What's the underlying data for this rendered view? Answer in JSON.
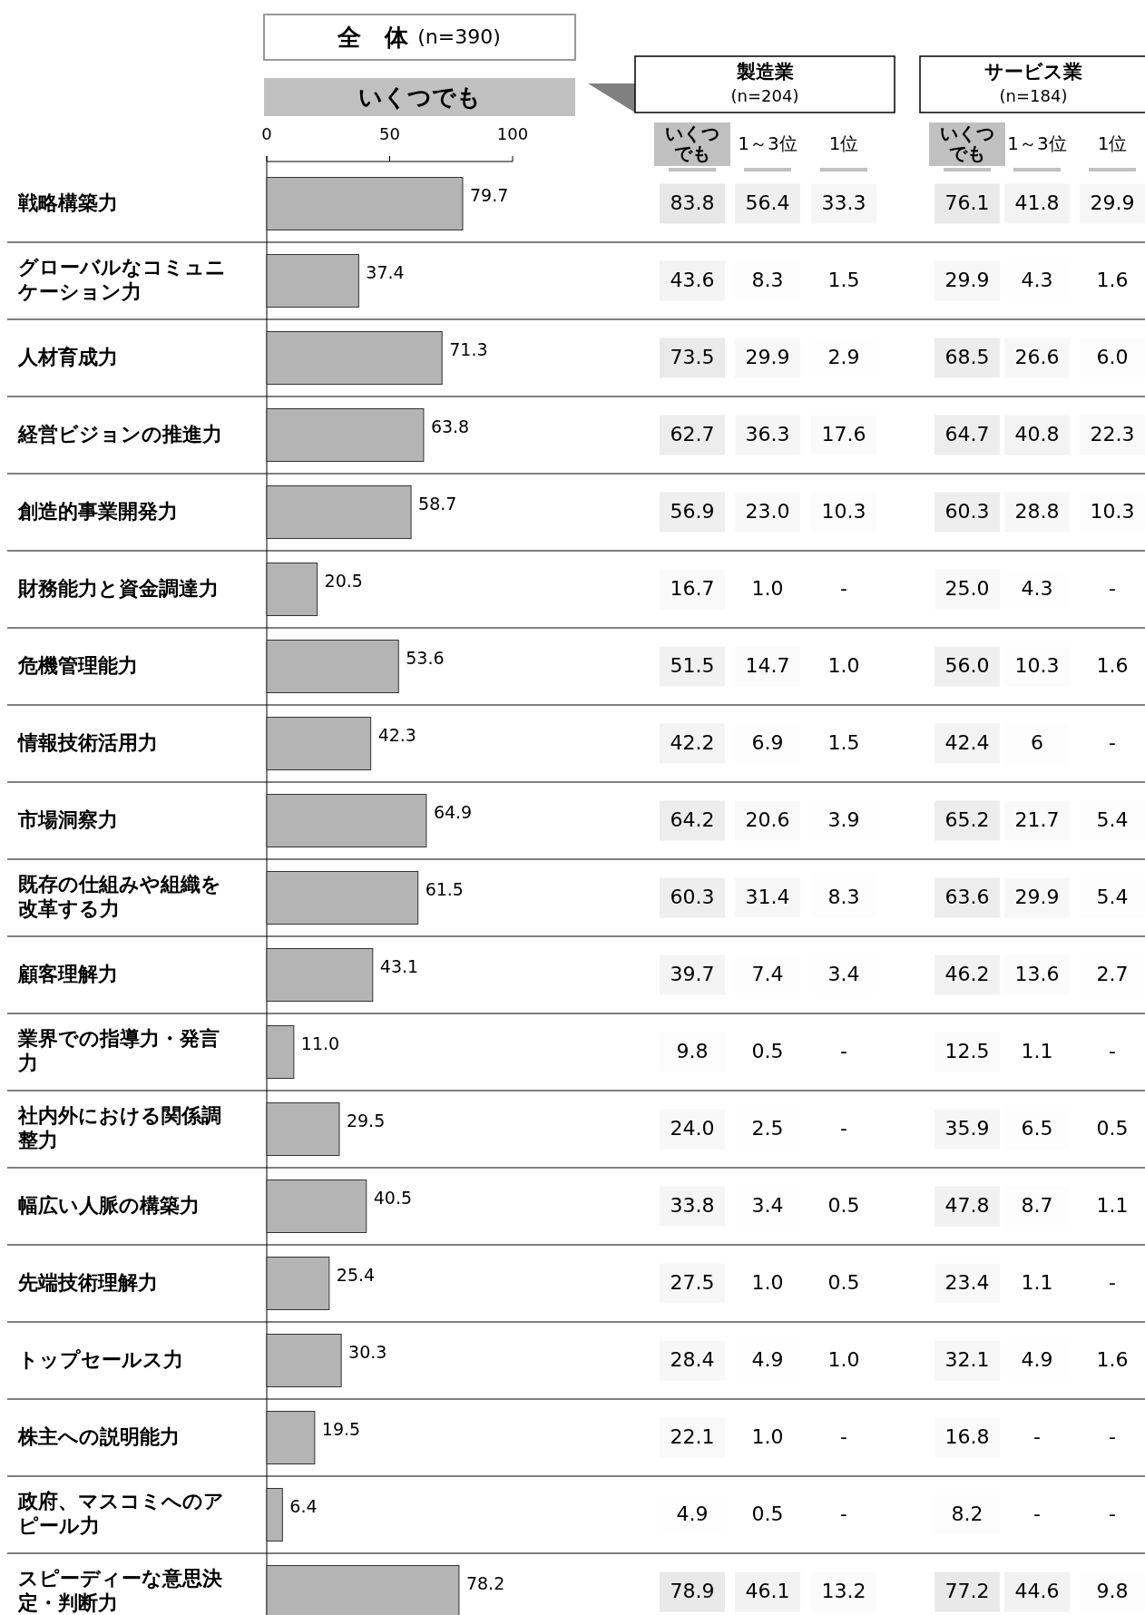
{
  "chart_data": [
    {
      "type": "bar",
      "orientation": "horizontal",
      "title": "全　体",
      "subtitle": "(n=390)",
      "xlabel": "いくつでも",
      "color": "#b4b4b4",
      "xlim": [
        0,
        100
      ],
      "xticks": [
        0,
        50,
        100
      ],
      "categories": [
        "戦略構築力",
        "グローバルなコミュニケーション力",
        "人材育成力",
        "経営ビジョンの推進力",
        "創造的事業開発力",
        "財務能力と資金調達力",
        "危機管理能力",
        "情報技術活用力",
        "市場洞察力",
        "既存の仕組みや組織を改革する力",
        "顧客理解力",
        "業界での指導力・発言力",
        "社内外における関係調整力",
        "幅広い人脈の構築力",
        "先端技術理解力",
        "トップセールス力",
        "株主への説明能力",
        "政府、マスコミへのアピール力",
        "スピーディーな意思決定・判断力"
      ],
      "values": [
        79.7,
        37.4,
        71.3,
        63.8,
        58.7,
        20.5,
        53.6,
        42.3,
        64.9,
        61.5,
        43.1,
        11.0,
        29.5,
        40.5,
        25.4,
        30.3,
        19.5,
        6.4,
        78.2
      ],
      "value_labels": [
        "79.7",
        "37.4",
        "71.3",
        "63.8",
        "58.7",
        "20.5",
        "53.6",
        "42.3",
        "64.9",
        "61.5",
        "43.1",
        "11.0",
        "29.5",
        "40.5",
        "25.4",
        "30.3",
        "19.5",
        "6.4",
        "78.2"
      ]
    },
    {
      "type": "heatmap",
      "title": "製造業",
      "subtitle": "(n=204)",
      "categories": [
        "いくつでも",
        "1～3位",
        "1位"
      ],
      "y_categories": [
        null,
        null,
        null,
        null,
        null,
        null,
        null,
        null,
        null,
        null,
        null,
        null,
        null,
        null,
        null,
        null,
        null,
        null,
        null
      ],
      "cells": [
        [
          83.8,
          56.4,
          33.3
        ],
        [
          43.6,
          8.3,
          1.5
        ],
        [
          73.5,
          29.9,
          2.9
        ],
        [
          62.7,
          36.3,
          17.6
        ],
        [
          56.9,
          23.0,
          10.3
        ],
        [
          16.7,
          1.0,
          null
        ],
        [
          51.5,
          14.7,
          1.0
        ],
        [
          42.2,
          6.9,
          1.5
        ],
        [
          64.2,
          20.6,
          3.9
        ],
        [
          60.3,
          31.4,
          8.3
        ],
        [
          39.7,
          7.4,
          3.4
        ],
        [
          9.8,
          0.5,
          null
        ],
        [
          24.0,
          2.5,
          null
        ],
        [
          33.8,
          3.4,
          0.5
        ],
        [
          27.5,
          1.0,
          0.5
        ],
        [
          28.4,
          4.9,
          1.0
        ],
        [
          22.1,
          1.0,
          null
        ],
        [
          4.9,
          0.5,
          null
        ],
        [
          78.9,
          46.1,
          13.2
        ]
      ],
      "cell_labels": [
        [
          "83.8",
          "56.4",
          "33.3"
        ],
        [
          "43.6",
          "8.3",
          "1.5"
        ],
        [
          "73.5",
          "29.9",
          "2.9"
        ],
        [
          "62.7",
          "36.3",
          "17.6"
        ],
        [
          "56.9",
          "23.0",
          "10.3"
        ],
        [
          "16.7",
          "1.0",
          "-"
        ],
        [
          "51.5",
          "14.7",
          "1.0"
        ],
        [
          "42.2",
          "6.9",
          "1.5"
        ],
        [
          "64.2",
          "20.6",
          "3.9"
        ],
        [
          "60.3",
          "31.4",
          "8.3"
        ],
        [
          "39.7",
          "7.4",
          "3.4"
        ],
        [
          "9.8",
          "0.5",
          "-"
        ],
        [
          "24.0",
          "2.5",
          "-"
        ],
        [
          "33.8",
          "3.4",
          "0.5"
        ],
        [
          "27.5",
          "1.0",
          "0.5"
        ],
        [
          "28.4",
          "4.9",
          "1.0"
        ],
        [
          "22.1",
          "1.0",
          "-"
        ],
        [
          "4.9",
          "0.5",
          "-"
        ],
        [
          "78.9",
          "46.1",
          "13.2"
        ]
      ]
    },
    {
      "type": "heatmap",
      "title": "サービス業",
      "subtitle": "(n=184)",
      "categories": [
        "いくつでも",
        "1～3位",
        "1位"
      ],
      "y_categories": [
        null,
        null,
        null,
        null,
        null,
        null,
        null,
        null,
        null,
        null,
        null,
        null,
        null,
        null,
        null,
        null,
        null,
        null,
        null
      ],
      "cells": [
        [
          76.1,
          41.8,
          29.9
        ],
        [
          29.9,
          4.3,
          1.6
        ],
        [
          68.5,
          26.6,
          6.0
        ],
        [
          64.7,
          40.8,
          22.3
        ],
        [
          60.3,
          28.8,
          10.3
        ],
        [
          25.0,
          4.3,
          null
        ],
        [
          56.0,
          10.3,
          1.6
        ],
        [
          42.4,
          6,
          null
        ],
        [
          65.2,
          21.7,
          5.4
        ],
        [
          63.6,
          29.9,
          5.4
        ],
        [
          46.2,
          13.6,
          2.7
        ],
        [
          12.5,
          1.1,
          null
        ],
        [
          35.9,
          6.5,
          0.5
        ],
        [
          47.8,
          8.7,
          1.1
        ],
        [
          23.4,
          1.1,
          null
        ],
        [
          32.1,
          4.9,
          1.6
        ],
        [
          16.8,
          null,
          null
        ],
        [
          8.2,
          null,
          null
        ],
        [
          77.2,
          44.6,
          9.8
        ]
      ],
      "cell_labels": [
        [
          "76.1",
          "41.8",
          "29.9"
        ],
        [
          "29.9",
          "4.3",
          "1.6"
        ],
        [
          "68.5",
          "26.6",
          "6.0"
        ],
        [
          "64.7",
          "40.8",
          "22.3"
        ],
        [
          "60.3",
          "28.8",
          "10.3"
        ],
        [
          "25.0",
          "4.3",
          "-"
        ],
        [
          "56.0",
          "10.3",
          "1.6"
        ],
        [
          "42.4",
          "6",
          "-"
        ],
        [
          "65.2",
          "21.7",
          "5.4"
        ],
        [
          "63.6",
          "29.9",
          "5.4"
        ],
        [
          "46.2",
          "13.6",
          "2.7"
        ],
        [
          "12.5",
          "1.1",
          "-"
        ],
        [
          "35.9",
          "6.5",
          "0.5"
        ],
        [
          "47.8",
          "8.7",
          "1.1"
        ],
        [
          "23.4",
          "1.1",
          "-"
        ],
        [
          "32.1",
          "4.9",
          "1.6"
        ],
        [
          "16.8",
          "-",
          "-"
        ],
        [
          "8.2",
          "-",
          "-"
        ],
        [
          "77.2",
          "44.6",
          "9.8"
        ]
      ]
    }
  ]
}
